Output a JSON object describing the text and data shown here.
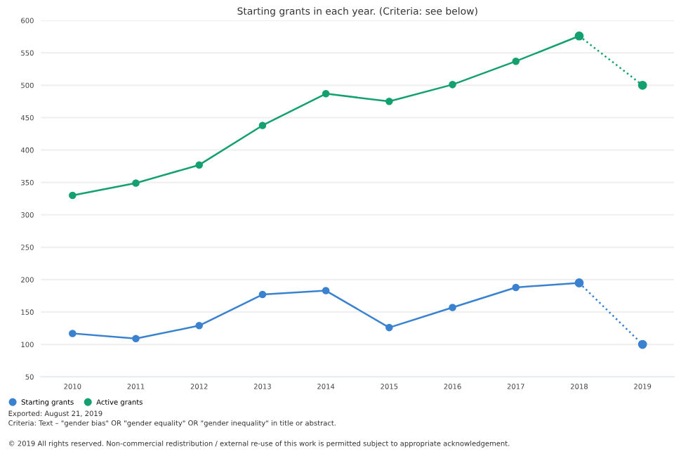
{
  "chart_data": {
    "type": "line",
    "title": "Starting grants in each year. (Criteria: see below)",
    "categories": [
      "2010",
      "2011",
      "2012",
      "2013",
      "2014",
      "2015",
      "2016",
      "2017",
      "2018",
      "2019"
    ],
    "series": [
      {
        "name": "Starting grants",
        "color": "#3a82d0",
        "line_style": "solid",
        "values": [
          117,
          109,
          129,
          177,
          183,
          126,
          157,
          188,
          195,
          null
        ]
      },
      {
        "name": "Active grants",
        "color": "#14a06f",
        "line_style": "solid",
        "values": [
          330,
          349,
          377,
          438,
          487,
          475,
          501,
          537,
          576,
          null
        ]
      },
      {
        "color": "#3a82d0",
        "line_style": "dotted",
        "values": [
          null,
          null,
          null,
          null,
          null,
          null,
          null,
          null,
          195,
          100
        ]
      },
      {
        "color": "#14a06f",
        "line_style": "dotted",
        "values": [
          null,
          null,
          null,
          null,
          null,
          null,
          null,
          null,
          576,
          500
        ]
      }
    ],
    "ylim": [
      50,
      600
    ],
    "yticks": [
      50,
      100,
      150,
      200,
      250,
      300,
      350,
      400,
      450,
      500,
      550,
      600
    ],
    "grid": "y",
    "marker": "circle",
    "legend": "bottom left",
    "annotations": [
      "Exported: August 21, 2019",
      "Criteria: Text – \"gender bias\" OR \"gender equality\" OR \"gender inequality\" in title or abstract.",
      "© 2019 All rights reserved. Non-commercial redistribution / external re-use of this work is permitted subject to appropriate acknowledgement."
    ]
  }
}
